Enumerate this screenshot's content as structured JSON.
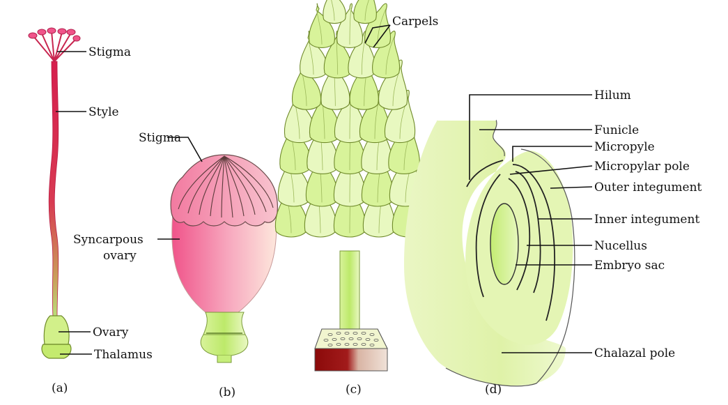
{
  "panels": [
    {
      "id": "a",
      "caption": "(a)",
      "labels": {
        "stigma": "Stigma",
        "style": "Style",
        "ovary": "Ovary",
        "thalamus": "Thalamus"
      }
    },
    {
      "id": "b",
      "caption": "(b)",
      "labels": {
        "stigma": "Stigma",
        "ovary_line1": "Syncarpous",
        "ovary_line2": "ovary"
      }
    },
    {
      "id": "c",
      "caption": "(c)",
      "labels": {
        "carpels": "Carpels"
      }
    },
    {
      "id": "d",
      "caption": "(d)",
      "labels": {
        "hilum": "Hilum",
        "funicle": "Funicle",
        "micropyle": "Micropyle",
        "micropylar_pole": "Micropylar pole",
        "outer_integument": "Outer integument",
        "inner_integument": "Inner integument",
        "nucellus": "Nucellus",
        "embryo_sac": "Embryo sac",
        "chalazal_pole": "Chalazal pole"
      }
    }
  ],
  "colors": {
    "pink": "#f0548a",
    "crimson": "#d61f4e",
    "light_green": "#dff5a8",
    "green": "#c6ee7a",
    "dark_red": "#8b0a0a"
  }
}
